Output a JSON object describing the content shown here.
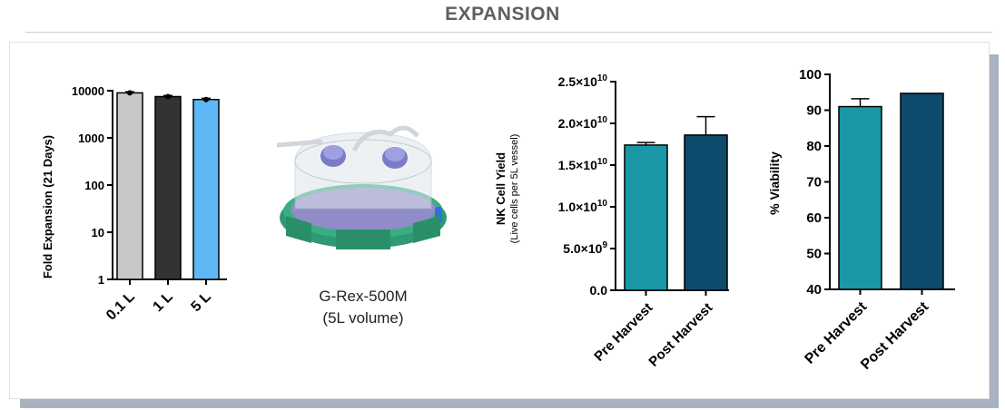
{
  "header": {
    "title": "EXPANSION"
  },
  "device": {
    "name": "G-Rex-500M",
    "volume": "(5L volume)"
  },
  "chart_data": [
    {
      "type": "bar",
      "ylabel": "Fold Expansion (21 Days)",
      "yscale": "log",
      "ylim": [
        1,
        10000
      ],
      "yticks": [
        "10000",
        "1000",
        "100",
        "10",
        "1"
      ],
      "categories": [
        "0.1 L",
        "1 L",
        "5 L"
      ],
      "values": [
        9000,
        7500,
        6500
      ],
      "errors": [
        500,
        400,
        400
      ],
      "colors": [
        "#c8c8c8",
        "#333333",
        "#5eb8f5"
      ]
    },
    {
      "type": "bar",
      "ylabel": "NK Cell Yield",
      "ylabel_sub": "(Live cells per 5L vessel)",
      "ylim": [
        0,
        25000000000
      ],
      "yticks": [
        {
          "base": "0.0",
          "exp": ""
        },
        {
          "base": "5.0×10",
          "exp": "9"
        },
        {
          "base": "1.0×10",
          "exp": "10"
        },
        {
          "base": "1.5×10",
          "exp": "10"
        },
        {
          "base": "2.0×10",
          "exp": "10"
        },
        {
          "base": "2.5×10",
          "exp": "10"
        }
      ],
      "categories": [
        "Pre Harvest",
        "Post Harvest"
      ],
      "values": [
        17400000000,
        18600000000
      ],
      "errors": [
        300000000,
        2200000000
      ],
      "colors": [
        "#1a98a6",
        "#0d4a6c"
      ]
    },
    {
      "type": "bar",
      "ylabel": "% Viability",
      "ylim": [
        40,
        100
      ],
      "yticks": [
        "40",
        "50",
        "60",
        "70",
        "80",
        "90",
        "100"
      ],
      "categories": [
        "Pre Harvest",
        "Post Harvest"
      ],
      "values": [
        91,
        94.7
      ],
      "errors": [
        2.2,
        0
      ],
      "colors": [
        "#1a98a6",
        "#0d4a6c"
      ]
    }
  ]
}
